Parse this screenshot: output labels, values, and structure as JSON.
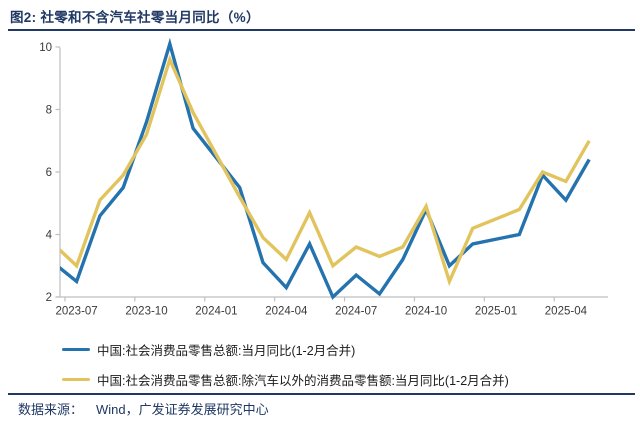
{
  "figure": {
    "title": "图2:  社零和不含汽车社零当月同比（%）",
    "source_label": "数据来源：",
    "source_text": "Wind，广发证券发展研究中心"
  },
  "colors": {
    "accent_navy": "#1F3864",
    "axis_line": "#BFBFBF",
    "tick_text": "#3a3a3a",
    "legend_text": "#1b1b1b",
    "series_total_blue": "#2573AE",
    "series_ex_auto_yellow": "#E2C45E"
  },
  "chart_data": {
    "type": "line",
    "title": "社零和不含汽车社零当月同比（%）",
    "x": [
      "2023-06",
      "2023-07",
      "2023-08",
      "2023-09",
      "2023-10",
      "2023-11",
      "2023-12",
      "2024-01/02",
      "2024-03",
      "2024-04",
      "2024-05",
      "2024-06",
      "2024-07",
      "2024-08",
      "2024-09",
      "2024-10",
      "2024-11",
      "2024-12",
      "2025-01/02",
      "2025-03",
      "2025-04",
      "2025-05"
    ],
    "series": [
      {
        "name": "中国:社会消费品零售总额:当月同比(1-2月合并)",
        "color": "#2573AE",
        "values": [
          3.1,
          2.5,
          4.6,
          5.5,
          7.6,
          10.1,
          7.4,
          5.5,
          3.1,
          2.3,
          3.7,
          2.0,
          2.7,
          2.1,
          3.2,
          4.8,
          3.0,
          3.7,
          4.0,
          5.9,
          5.1,
          6.4
        ]
      },
      {
        "name": "中国:社会消费品零售总额:除汽车以外的消费品零售额:当月同比(1-2月合并)",
        "color": "#E2C45E",
        "values": [
          3.7,
          3.0,
          5.1,
          5.9,
          7.2,
          9.6,
          7.9,
          5.2,
          3.9,
          3.2,
          4.7,
          3.0,
          3.6,
          3.3,
          3.6,
          4.9,
          2.5,
          4.2,
          4.8,
          6.0,
          5.7,
          7.0
        ]
      }
    ],
    "x_tick_labels": [
      "2023-07",
      "2023-10",
      "2024-01",
      "2024-04",
      "2024-07",
      "2024-10",
      "2025-01",
      "2025-04"
    ],
    "yticks": [
      2,
      4,
      6,
      8,
      10
    ],
    "ylim": [
      2,
      10
    ],
    "grid": "off",
    "legend_position": "bottom",
    "note_merged_months": "1-2月合并"
  }
}
